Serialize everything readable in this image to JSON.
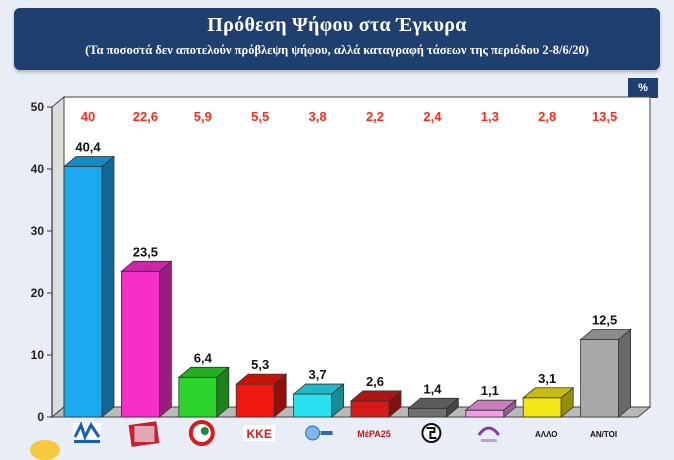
{
  "header": {
    "title": "Πρόθεση Ψήφου στα Έγκυρα",
    "subtitle": "(Τα ποσοστά δεν αποτελούν πρόβλεψη ψήφου, αλλά καταγραφή τάσεων της περιόδου 2-8/6/20)"
  },
  "unit_badge": "%",
  "chart_data": {
    "type": "bar",
    "style": "3d",
    "grid": false,
    "ylim": [
      0,
      50
    ],
    "yticks": [
      0,
      10,
      20,
      30,
      40,
      50
    ],
    "series": [
      {
        "values": [
          40.4,
          23.5,
          6.4,
          5.3,
          3.7,
          2.6,
          1.4,
          1.1,
          3.1,
          12.5
        ],
        "value_labels": [
          "40,4",
          "23,5",
          "6,4",
          "5,3",
          "3,7",
          "2,6",
          "1,4",
          "1,1",
          "3,1",
          "12,5"
        ]
      }
    ],
    "previous_values_labels": [
      "40",
      "22,6",
      "5,9",
      "5,5",
      "3,8",
      "2,2",
      "2,4",
      "1,3",
      "2,8",
      "13,5"
    ],
    "categories": [
      {
        "label": "",
        "logo": "nd-logo",
        "color": "#1aa9ef"
      },
      {
        "label": "",
        "logo": "syriza-logo",
        "color": "#f72ec8"
      },
      {
        "label": "",
        "logo": "kinal-logo",
        "color": "#2bd42b"
      },
      {
        "label": "",
        "logo": "kke-logo",
        "color": "#f0180f"
      },
      {
        "label": "",
        "logo": "elliniki-lysi-logo",
        "color": "#28e0ef"
      },
      {
        "label": "",
        "logo": "mera25-logo",
        "color": "#d41a1a"
      },
      {
        "label": "",
        "logo": "golden-dawn-logo",
        "color": "#707070"
      },
      {
        "label": "",
        "logo": "plefsi-logo",
        "color": "#f49ae8"
      },
      {
        "label": "ΑΛΛΟ",
        "logo": "",
        "color": "#f1e716"
      },
      {
        "label": "ΑΝ/ΤΟΙ",
        "logo": "",
        "color": "#a9a9a9"
      }
    ],
    "text_colors": {
      "previous": "#ff2a1a",
      "axis": "#222222"
    },
    "logo_text": {
      "kke": "ΚΚΕ",
      "mera25": "ΜέΡΑ25"
    }
  }
}
